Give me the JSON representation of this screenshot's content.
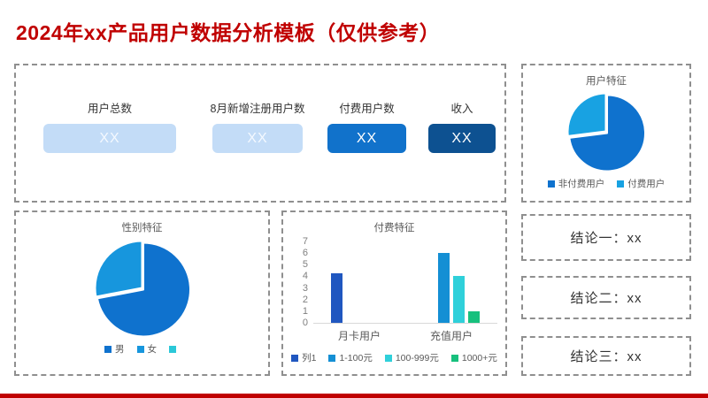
{
  "page": {
    "title": "2024年xx产品用户数据分析模板（仅供参考）",
    "accent_color": "#c00000"
  },
  "kpi_section": {
    "cards": [
      {
        "label": "用户总数",
        "value": "XX",
        "bg": "#c3dcf7",
        "value_color": "#f4f9ff"
      },
      {
        "label": "8月新增注册用户数",
        "value": "XX",
        "bg": "#c3dcf7",
        "value_color": "#f4f9ff"
      },
      {
        "label": "付费用户数",
        "value": "XX",
        "bg": "#1172cb",
        "value_color": "#ffffff"
      },
      {
        "label": "收入",
        "value": "XX",
        "bg": "#0d5191",
        "value_color": "#ffffff"
      }
    ]
  },
  "chart_data": [
    {
      "type": "pie",
      "title": "用户特征",
      "slices": [
        {
          "label": "非付费用户",
          "value": 73,
          "color": "#0f72ce"
        },
        {
          "label": "付费用户",
          "value": 27,
          "color": "#18a2e2"
        }
      ],
      "legend_position": "bottom"
    },
    {
      "type": "pie",
      "title": "性别特征",
      "slices": [
        {
          "label": "男",
          "value": 72,
          "color": "#0f72ce"
        },
        {
          "label": "女",
          "value": 28,
          "color": "#1796dd"
        },
        {
          "label": "",
          "value": 0,
          "color": "#2bc8d8"
        }
      ],
      "legend_position": "bottom"
    },
    {
      "type": "bar",
      "title": "付费特征",
      "categories": [
        "月卡用户",
        "充值用户"
      ],
      "series": [
        {
          "name": "列1",
          "color": "#2057c0",
          "values": [
            4.3,
            null
          ]
        },
        {
          "name": "1-100元",
          "color": "#148fd4",
          "values": [
            null,
            6
          ]
        },
        {
          "name": "100-999元",
          "color": "#2fd0da",
          "values": [
            null,
            4
          ]
        },
        {
          "name": "1000+元",
          "color": "#17c07d",
          "values": [
            null,
            1
          ]
        }
      ],
      "ylim": [
        0,
        7
      ],
      "yticks": [
        0,
        1,
        2,
        3,
        4,
        5,
        6,
        7
      ],
      "grid": false,
      "legend_position": "bottom"
    }
  ],
  "conclusions": [
    {
      "label": "结论一：xx"
    },
    {
      "label": "结论二：xx"
    },
    {
      "label": "结论三：xx"
    }
  ]
}
